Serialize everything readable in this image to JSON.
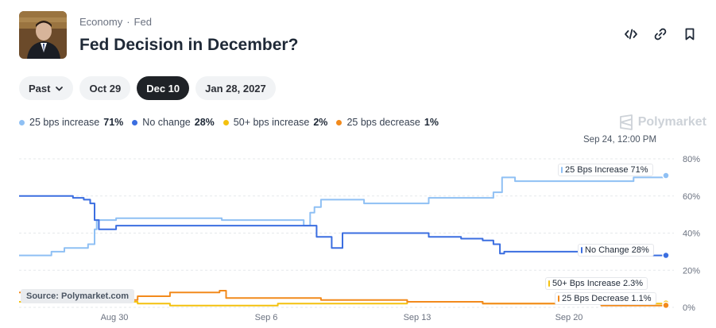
{
  "header": {
    "breadcrumb": [
      "Economy",
      "Fed"
    ],
    "separator": "·",
    "title": "Fed Decision in December?"
  },
  "actions": [
    {
      "name": "embed-code-icon"
    },
    {
      "name": "copy-link-icon"
    },
    {
      "name": "bookmark-icon"
    }
  ],
  "filters": {
    "past_label": "Past",
    "dates": [
      "Oct 29",
      "Dec 10",
      "Jan 28, 2027"
    ],
    "active": "Dec 10"
  },
  "legend": [
    {
      "label": "25 bps increase",
      "pct": "71%",
      "color": "#8fc0f4"
    },
    {
      "label": "No change",
      "pct": "28%",
      "color": "#3b6ee0"
    },
    {
      "label": "50+ bps increase",
      "pct": "2%",
      "color": "#f4c10f"
    },
    {
      "label": "25 bps decrease",
      "pct": "1%",
      "color": "#f28a1c"
    }
  ],
  "brand": "Polymarket",
  "hover_timestamp": "Sep 24, 12:00 PM",
  "source": "Source: Polymarket.com",
  "chart_data": {
    "type": "line",
    "x_ticks": [
      "Aug 30",
      "Sep 6",
      "Sep 13",
      "Sep 20"
    ],
    "y_ticks": [
      "80%",
      "60%",
      "40%",
      "20%",
      "0%"
    ],
    "ylim": [
      0,
      80
    ],
    "series": [
      {
        "name": "25 Bps Increase",
        "end_label": "25 Bps Increase 71%",
        "color": "#8fc0f4",
        "points": [
          [
            0,
            28
          ],
          [
            1,
            28
          ],
          [
            1.5,
            30
          ],
          [
            2.1,
            32
          ],
          [
            3.2,
            34
          ],
          [
            3.5,
            42
          ],
          [
            3.6,
            47
          ],
          [
            4.5,
            48
          ],
          [
            9.3,
            48
          ],
          [
            9.4,
            47
          ],
          [
            13.2,
            44
          ],
          [
            13.5,
            51
          ],
          [
            13.7,
            54
          ],
          [
            14.0,
            58
          ],
          [
            15.5,
            58
          ],
          [
            16.0,
            56
          ],
          [
            18.5,
            56
          ],
          [
            19.0,
            59
          ],
          [
            21.5,
            59
          ],
          [
            22.0,
            62
          ],
          [
            22.3,
            62
          ],
          [
            22.4,
            70
          ],
          [
            23.0,
            68
          ],
          [
            24.5,
            68
          ],
          [
            25.0,
            68
          ],
          [
            27.0,
            68
          ],
          [
            28.5,
            70
          ],
          [
            30.0,
            71
          ]
        ]
      },
      {
        "name": "No Change",
        "end_label": "No Change 28%",
        "color": "#3b6ee0",
        "points": [
          [
            0,
            60
          ],
          [
            2.5,
            59
          ],
          [
            3.0,
            58
          ],
          [
            3.3,
            56
          ],
          [
            3.5,
            47
          ],
          [
            3.7,
            42
          ],
          [
            4.5,
            44
          ],
          [
            9.0,
            44
          ],
          [
            12.5,
            44
          ],
          [
            13.3,
            44
          ],
          [
            13.8,
            38
          ],
          [
            14.5,
            32
          ],
          [
            15.0,
            40
          ],
          [
            17.5,
            40
          ],
          [
            19.0,
            38
          ],
          [
            20.5,
            37
          ],
          [
            21.5,
            36
          ],
          [
            22.0,
            34
          ],
          [
            22.3,
            29
          ],
          [
            22.5,
            30
          ],
          [
            23.0,
            30
          ],
          [
            27.0,
            30
          ],
          [
            28.0,
            28
          ],
          [
            30.0,
            28
          ]
        ]
      },
      {
        "name": "50+ Bps Increase",
        "end_label": "50+ Bps Increase 2.3%",
        "color": "#f4c10f",
        "points": [
          [
            0,
            3
          ],
          [
            2.0,
            3
          ],
          [
            4.0,
            3
          ],
          [
            5.5,
            2
          ],
          [
            7.0,
            1
          ],
          [
            9.0,
            1
          ],
          [
            12.0,
            2
          ],
          [
            14.0,
            2
          ],
          [
            16.0,
            2
          ],
          [
            18.0,
            3
          ],
          [
            20.0,
            3
          ],
          [
            21.5,
            2
          ],
          [
            23.0,
            2
          ],
          [
            25.0,
            2
          ],
          [
            27.0,
            2
          ],
          [
            30.0,
            2.3
          ]
        ]
      },
      {
        "name": "25 Bps Decrease",
        "end_label": "25 Bps Decrease 1.1%",
        "color": "#f28a1c",
        "points": [
          [
            0,
            8
          ],
          [
            0.5,
            6
          ],
          [
            2.0,
            4
          ],
          [
            4.0,
            4
          ],
          [
            5.5,
            6
          ],
          [
            7.0,
            8
          ],
          [
            9.3,
            9
          ],
          [
            9.6,
            5
          ],
          [
            11.0,
            5
          ],
          [
            13.0,
            5
          ],
          [
            14.0,
            4
          ],
          [
            16.0,
            4
          ],
          [
            18.0,
            3
          ],
          [
            20.0,
            3
          ],
          [
            21.5,
            2
          ],
          [
            23.0,
            2
          ],
          [
            25.0,
            2
          ],
          [
            27.0,
            1
          ],
          [
            30.0,
            1.1
          ]
        ]
      }
    ]
  }
}
